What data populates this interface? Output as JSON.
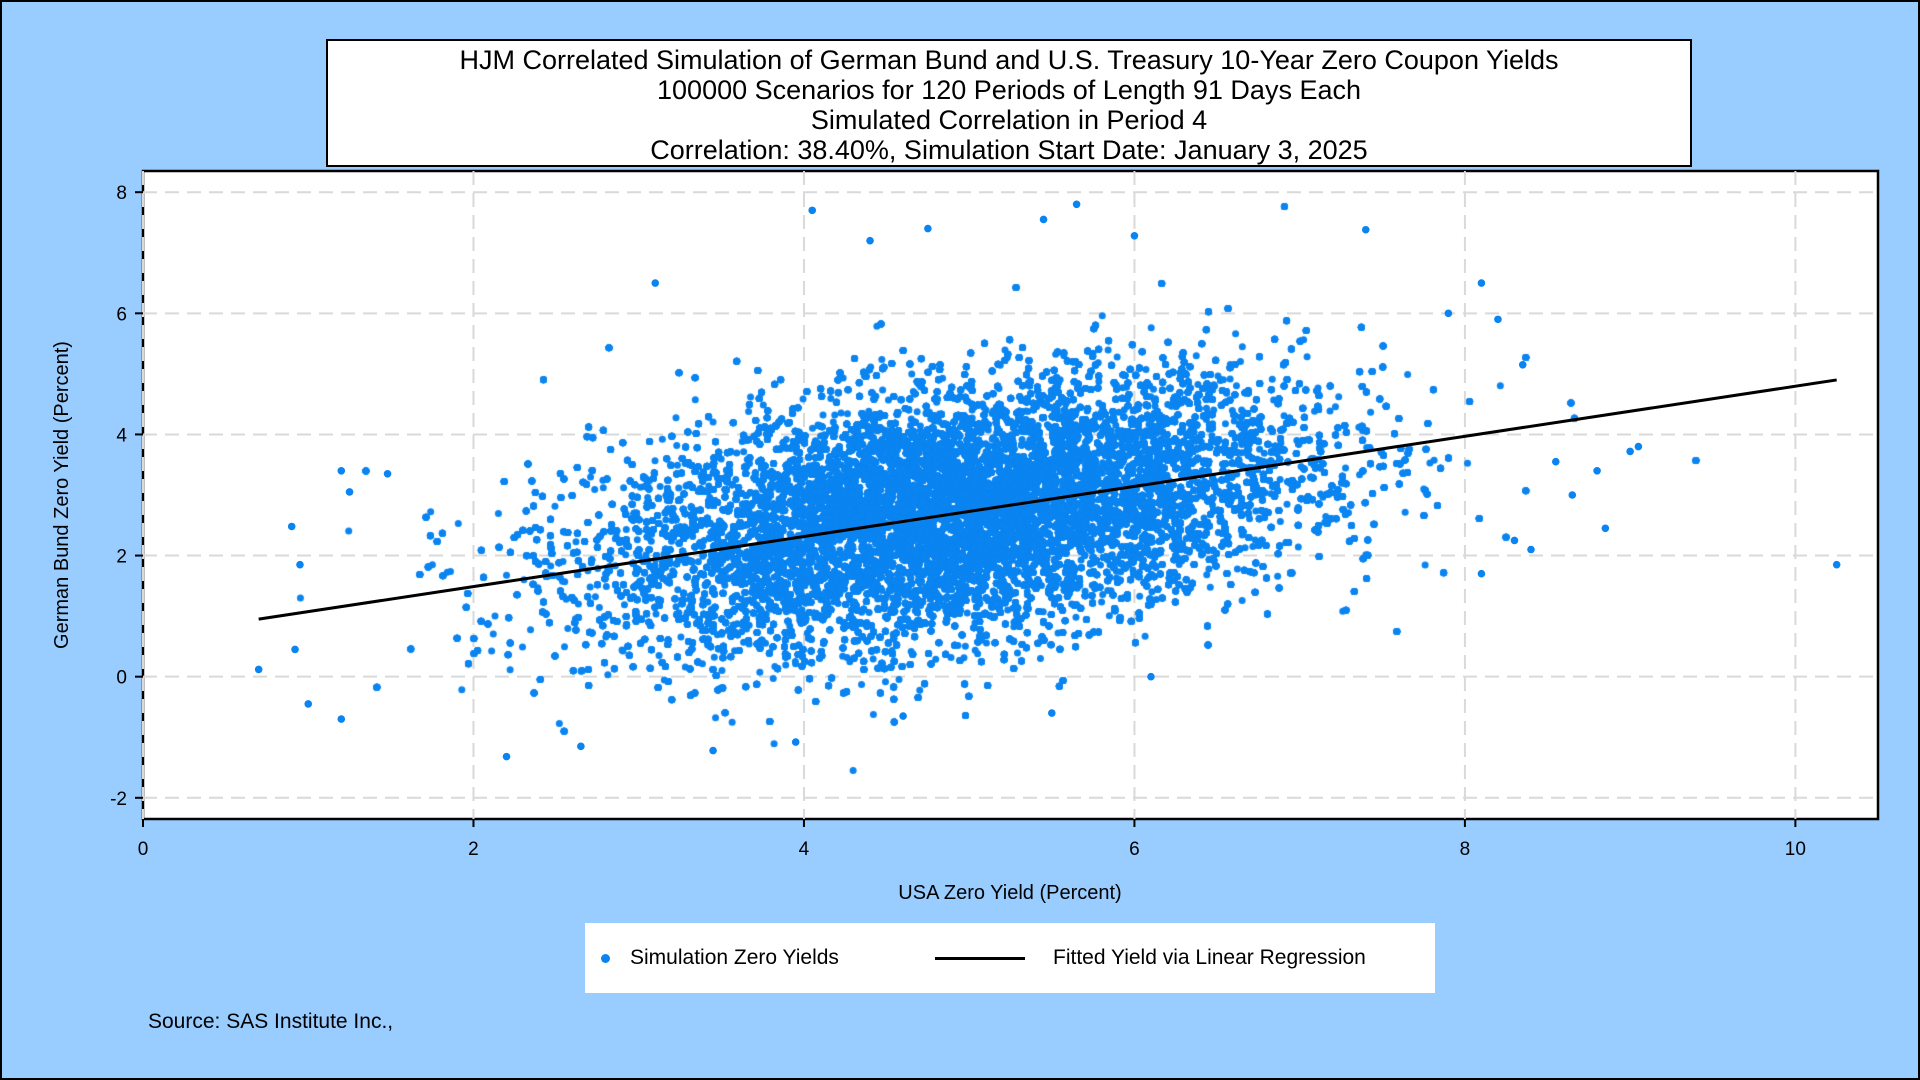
{
  "title_lines": [
    "HJM Correlated Simulation of German Bund and U.S. Treasury 10-Year Zero Coupon Yields",
    "100000 Scenarios for 120 Periods of Length 91 Days Each",
    "Simulated Correlation in Period 4",
    "Correlation: 38.40%,  Simulation Start Date:    January 3, 2025"
  ],
  "source": "Source: SAS Institute Inc.,",
  "colors": {
    "background": "#99CCFF",
    "point": "#0A84F0",
    "fit_line": "#000000",
    "grid": "#D9D9D9"
  },
  "legend": {
    "position": "bottom-center",
    "points_label": "Simulation Zero Yields",
    "line_label": "Fitted Yield via Linear Regression"
  },
  "chart_data": {
    "type": "scatter",
    "xlabel": "USA Zero Yield (Percent)",
    "ylabel": "German Bund Zero Yield (Percent)",
    "xlim": [
      0,
      10.5
    ],
    "ylim": [
      -2.35,
      8.35
    ],
    "xticks": [
      0,
      2,
      4,
      6,
      8,
      10
    ],
    "yticks": [
      -2,
      0,
      2,
      4,
      6,
      8
    ],
    "grid": true,
    "n_points": 100000,
    "correlation": 0.384,
    "cloud_center": [
      4.9,
      2.7
    ],
    "cloud_std": [
      1.05,
      1.08
    ],
    "fit_line": {
      "name": "Fitted Yield via Linear Regression",
      "x": [
        0.7,
        10.25
      ],
      "y": [
        0.95,
        4.9
      ]
    },
    "outliers": [
      [
        0.7,
        0.12
      ],
      [
        0.9,
        2.48
      ],
      [
        0.95,
        1.85
      ],
      [
        0.92,
        0.45
      ],
      [
        1.0,
        -0.45
      ],
      [
        1.2,
        3.4
      ],
      [
        1.25,
        3.05
      ],
      [
        1.48,
        3.35
      ],
      [
        1.2,
        -0.7
      ],
      [
        2.2,
        -1.32
      ],
      [
        2.65,
        -1.15
      ],
      [
        3.45,
        -1.22
      ],
      [
        3.95,
        -1.08
      ],
      [
        3.1,
        6.5
      ],
      [
        4.05,
        7.7
      ],
      [
        4.4,
        7.2
      ],
      [
        4.75,
        7.4
      ],
      [
        5.45,
        7.55
      ],
      [
        5.65,
        7.8
      ],
      [
        6.0,
        7.28
      ],
      [
        7.4,
        7.38
      ],
      [
        5.5,
        -0.6
      ],
      [
        4.6,
        -0.65
      ],
      [
        6.1,
        0.0
      ],
      [
        8.1,
        6.5
      ],
      [
        8.35,
        5.15
      ],
      [
        8.55,
        3.55
      ],
      [
        8.65,
        3.0
      ],
      [
        8.8,
        3.4
      ],
      [
        8.85,
        2.45
      ],
      [
        9.0,
        3.72
      ],
      [
        9.05,
        3.8
      ],
      [
        10.25,
        1.85
      ],
      [
        8.1,
        1.7
      ],
      [
        8.3,
        2.25
      ],
      [
        8.4,
        2.1
      ],
      [
        7.9,
        6.0
      ],
      [
        8.2,
        5.9
      ]
    ]
  }
}
